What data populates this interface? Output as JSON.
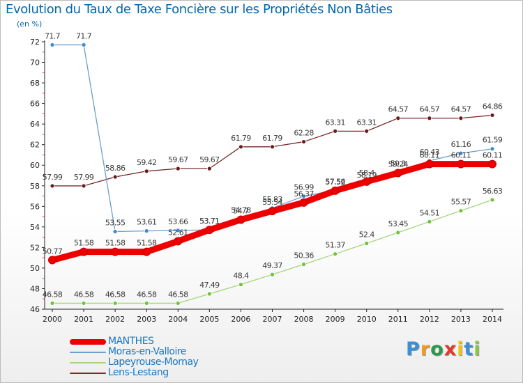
{
  "title": "Evolution du Taux de Taxe Foncière sur les Propriétés Non Bâties",
  "unit_label": "(en %)",
  "logo": {
    "text": "Proxiti",
    "letters": [
      {
        "ch": "P",
        "color": "#3a8fd6"
      },
      {
        "ch": "r",
        "color": "#f39a1f"
      },
      {
        "ch": "o",
        "color": "#2a9a4a"
      },
      {
        "ch": "x",
        "color": "#e03a2a"
      },
      {
        "ch": "i",
        "color": "#f1c40f"
      },
      {
        "ch": "t",
        "color": "#3a8fd6"
      },
      {
        "ch": "i",
        "color": "#8cc63f"
      }
    ]
  },
  "chart_data": {
    "type": "line",
    "title": "Evolution du Taux de Taxe Foncière sur les Propriétés Non Bâties",
    "ylabel": "(en %)",
    "xlabel": "",
    "x": [
      "2000",
      "2001",
      "2002",
      "2003",
      "2004",
      "2005",
      "2006",
      "2007",
      "2008",
      "2009",
      "2010",
      "2011",
      "2012",
      "2013",
      "2014"
    ],
    "ylim": [
      46,
      72
    ],
    "yticks": [
      46,
      48,
      50,
      52,
      54,
      56,
      58,
      60,
      62,
      64,
      66,
      68,
      70,
      72
    ],
    "grid": false,
    "legend_position": "bottom-left",
    "series": [
      {
        "name": "MANTHES",
        "color": "#ee0000",
        "marker_color": "#ee0000",
        "thick": true,
        "values": [
          50.77,
          51.58,
          51.58,
          51.58,
          52.61,
          53.71,
          54.7,
          55.54,
          56.37,
          57.52,
          58.4,
          59.24,
          60.11,
          60.11,
          60.11
        ],
        "labels": [
          "50.77",
          "51.58",
          "51.58",
          "51.58",
          "52.61",
          "53.71",
          "54.7",
          "55.54",
          "56.37",
          "57.52",
          "58.4",
          "59.24",
          "60.11",
          "60.11",
          "60.11"
        ]
      },
      {
        "name": "Moras-en-Valloire",
        "color": "#6a9fd0",
        "marker_color": "#3c8bd0",
        "thick": false,
        "values": [
          71.7,
          71.7,
          53.55,
          53.61,
          53.66,
          53.71,
          54.78,
          55.83,
          56.99,
          57.56,
          58.19,
          59.3,
          60.43,
          61.16,
          61.59
        ],
        "labels": [
          "71.7",
          "71.7",
          "53.55",
          "53.61",
          "53.66",
          "53.71",
          "54.78",
          "55.83",
          "56.99",
          "57.56",
          "58.19",
          "59.3",
          "60.43",
          "61.16",
          "61.59"
        ]
      },
      {
        "name": "Lapeyrouse-Mornay",
        "color": "#a4d67a",
        "marker_color": "#6fc23a",
        "thick": false,
        "values": [
          46.58,
          46.58,
          46.58,
          46.58,
          46.58,
          47.49,
          48.4,
          49.37,
          50.36,
          51.37,
          52.4,
          53.45,
          54.51,
          55.57,
          56.63
        ],
        "labels": [
          "46.58",
          "46.58",
          "46.58",
          "46.58",
          "46.58",
          "47.49",
          "48.4",
          "49.37",
          "50.36",
          "51.37",
          "52.4",
          "53.45",
          "54.51",
          "55.57",
          "56.63"
        ]
      },
      {
        "name": "Lens-Lestang",
        "color": "#7a2a2a",
        "marker_color": "#6b1a1a",
        "thick": false,
        "values": [
          57.99,
          57.99,
          58.86,
          59.42,
          59.67,
          59.67,
          61.79,
          61.79,
          62.28,
          63.31,
          63.31,
          64.57,
          64.57,
          64.57,
          64.86
        ],
        "labels": [
          "57.99",
          "57.99",
          "58.86",
          "59.42",
          "59.67",
          "59.67",
          "61.79",
          "61.79",
          "62.28",
          "63.31",
          "63.31",
          "64.57",
          "64.57",
          "64.57",
          "64.86"
        ]
      }
    ]
  }
}
